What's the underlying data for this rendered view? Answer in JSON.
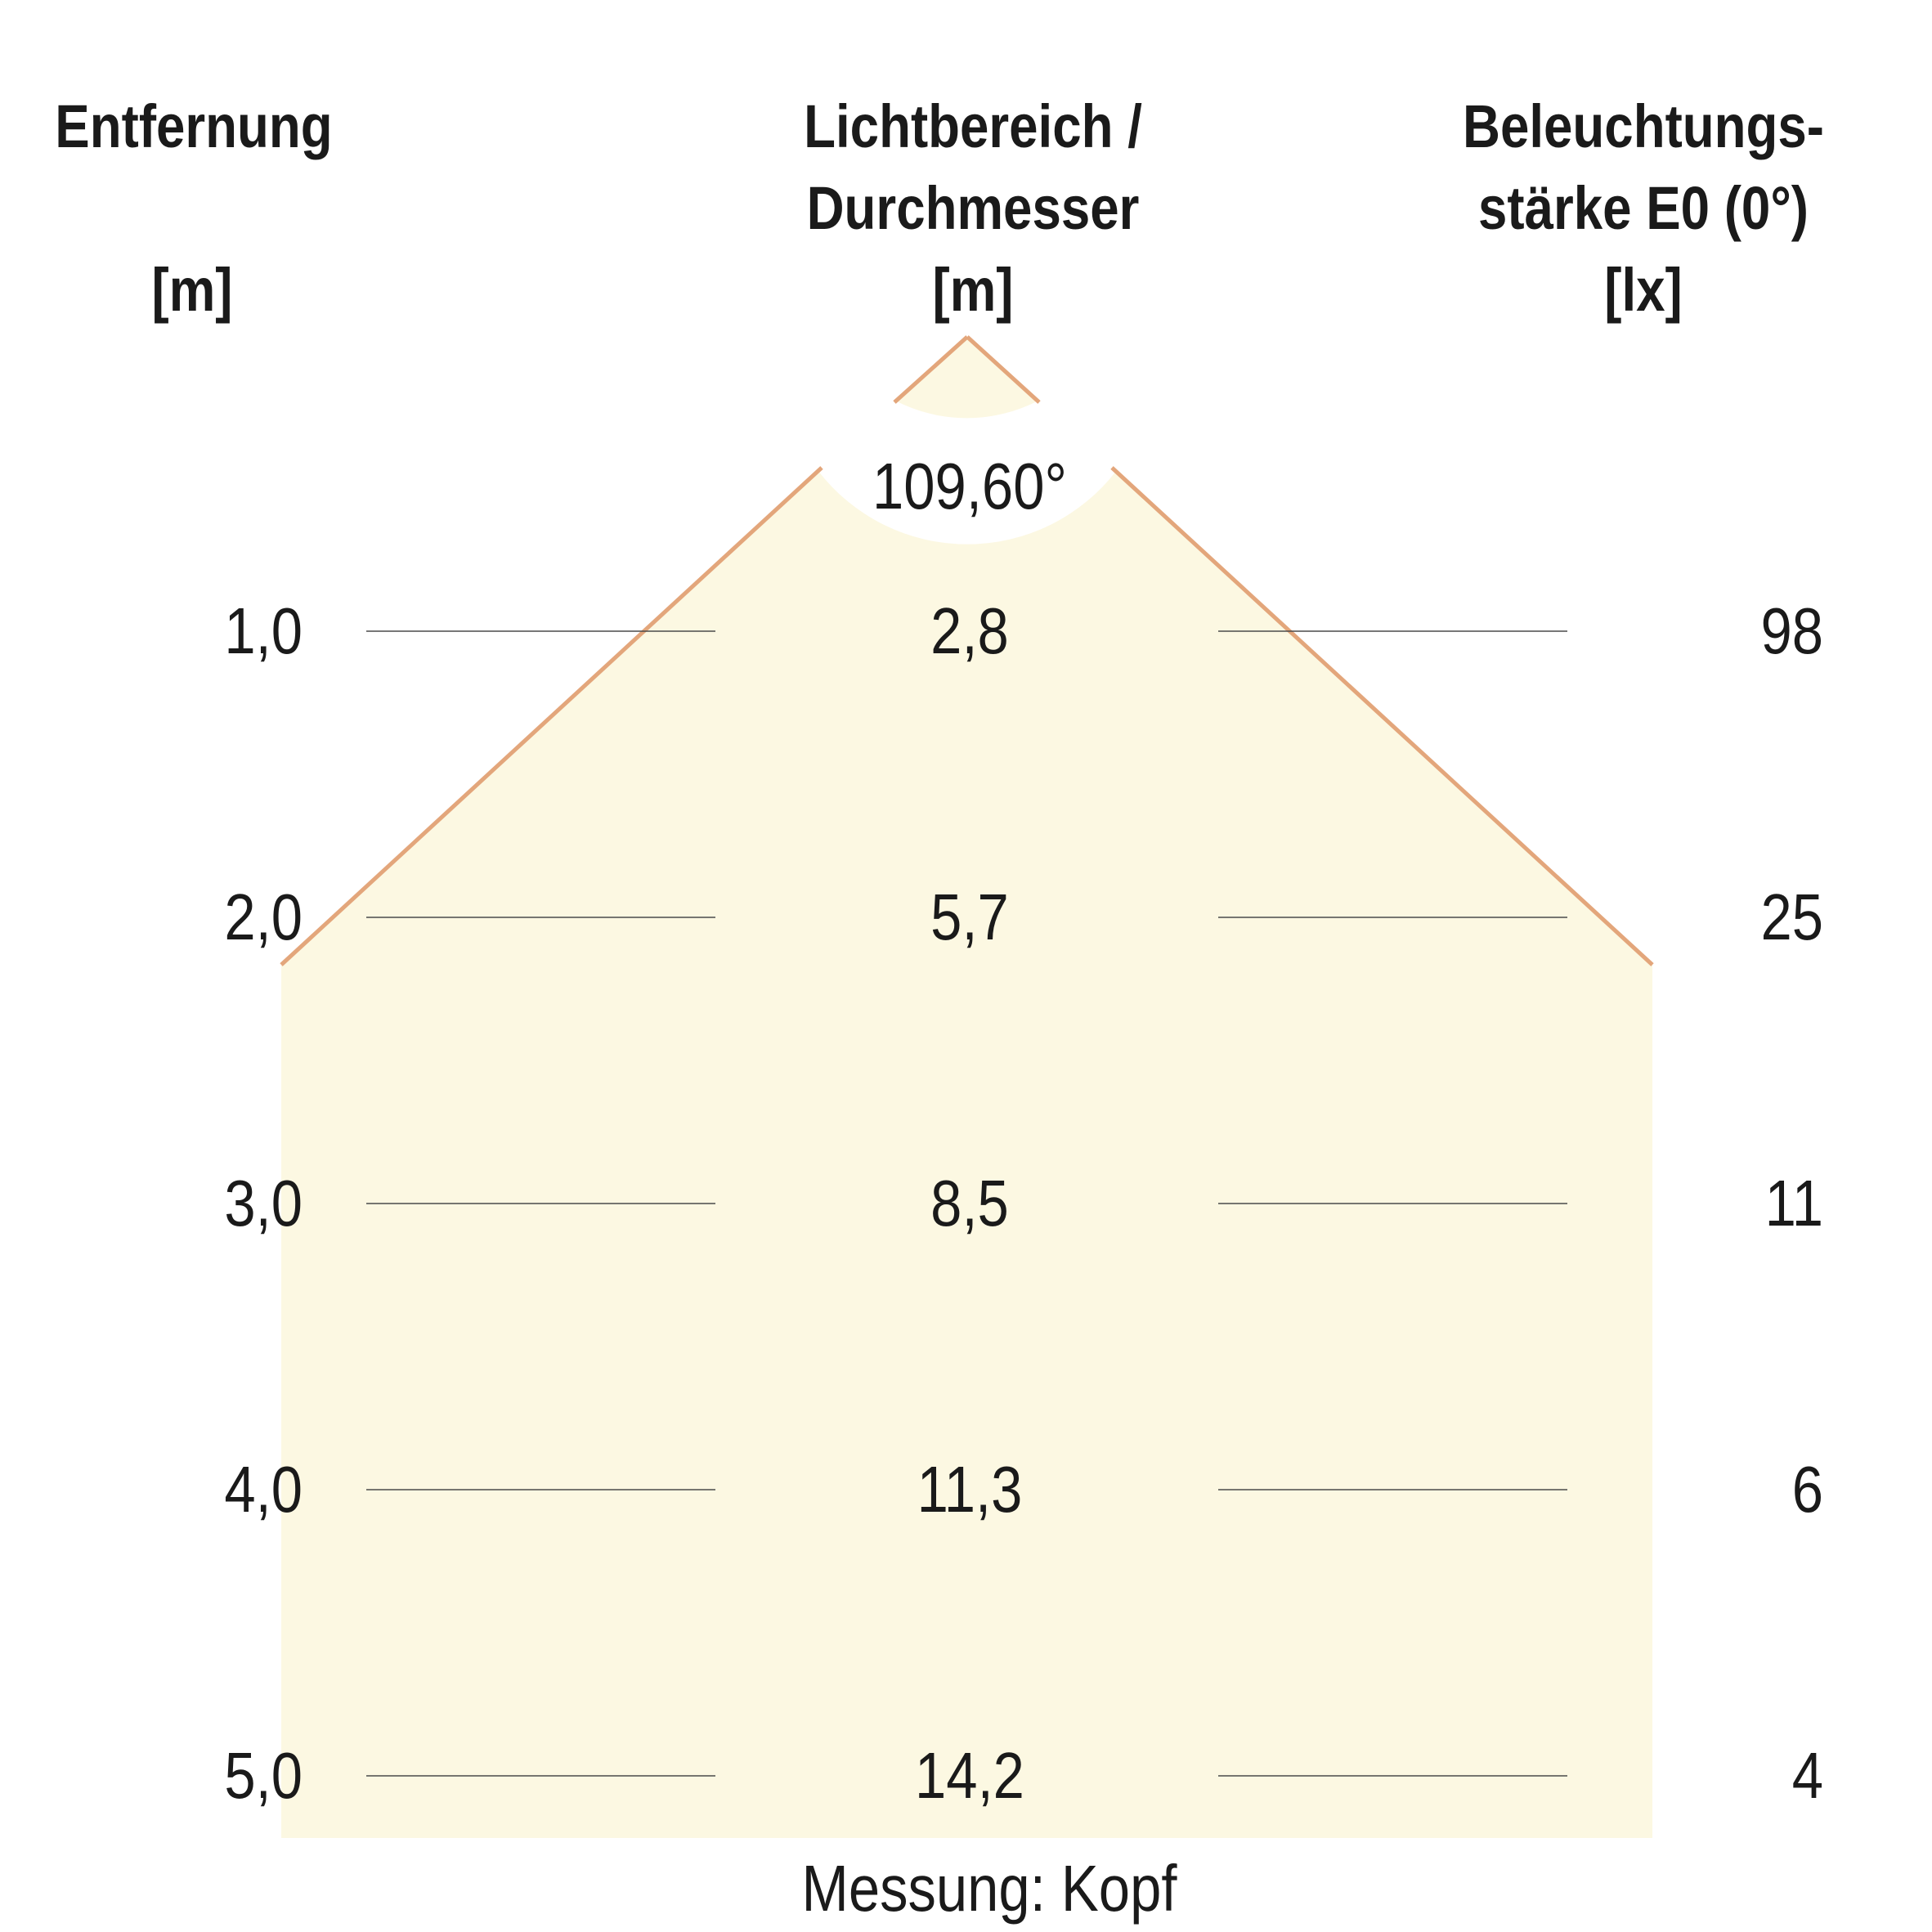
{
  "headers": {
    "distance": {
      "line1": "Entfernung",
      "unit": "[m]"
    },
    "diameter": {
      "line1": "Lichtbereich /",
      "line2": "Durchmesser",
      "unit": "[m]"
    },
    "illuminance": {
      "line1": "Beleuchtungs-",
      "line2": "stärke E0 (0°)",
      "unit": "[lx]"
    }
  },
  "beam_angle": "109,60°",
  "rows": [
    {
      "distance": "1,0",
      "diameter": "2,8",
      "illuminance": "98"
    },
    {
      "distance": "2,0",
      "diameter": "5,7",
      "illuminance": "25"
    },
    {
      "distance": "3,0",
      "diameter": "8,5",
      "illuminance": "11"
    },
    {
      "distance": "4,0",
      "diameter": "11,3",
      "illuminance": "6"
    },
    {
      "distance": "5,0",
      "diameter": "14,2",
      "illuminance": "4"
    }
  ],
  "footer": "Messung: Kopf",
  "colors": {
    "beam_fill": "#fcf8e2",
    "beam_edge": "#e3a67b",
    "rule_line": "#4a4a4a",
    "text": "#1a1a1a"
  }
}
